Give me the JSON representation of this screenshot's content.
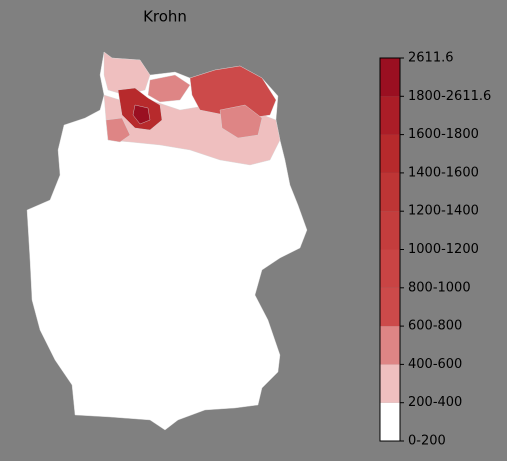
{
  "title": "Krohn",
  "legend": {
    "labels": [
      "0-200",
      "200-400",
      "400-600",
      "600-800",
      "800-1000",
      "1000-1200",
      "1200-1400",
      "1400-1600",
      "1600-1800",
      "1800-2611.6",
      "2611.6"
    ],
    "colors": [
      "#ffffff",
      "#efbfbf",
      "#de8585",
      "#cc4a4a",
      "#c94444",
      "#c43d3d",
      "#be3535",
      "#b72a2c",
      "#ab1d27",
      "#9a0f21"
    ]
  }
}
